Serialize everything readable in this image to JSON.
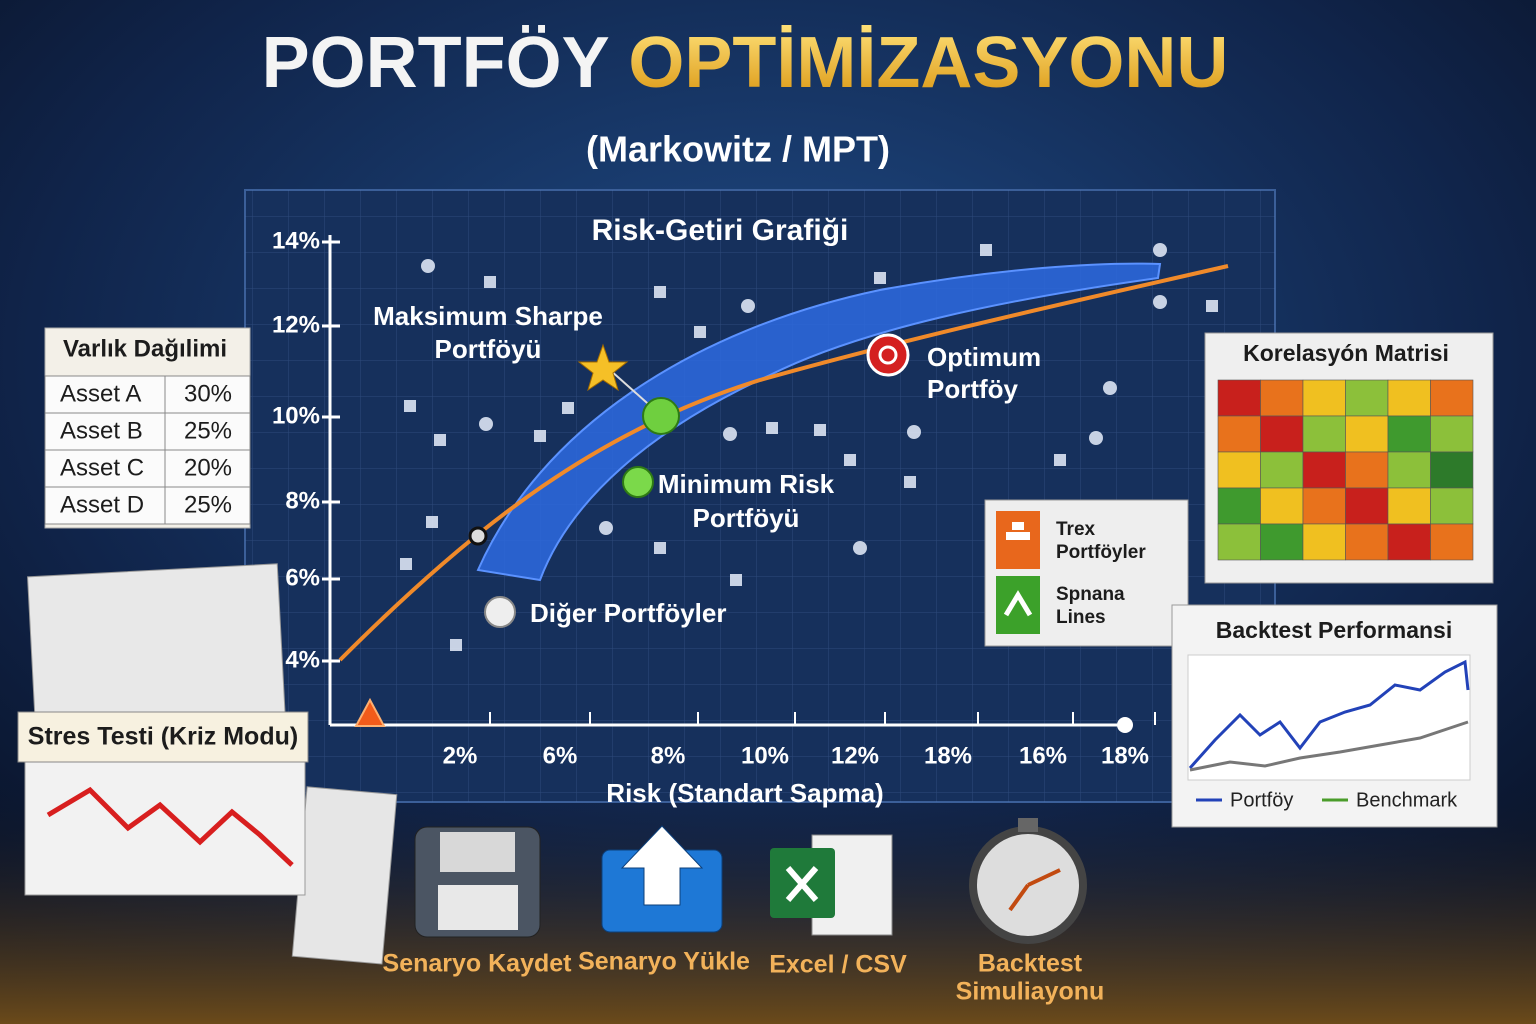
{
  "header": {
    "title_white": "PORTFÖY",
    "title_gold": "OPTİMİZASYONU",
    "subtitle": "(Markowitz / MPT)"
  },
  "chart": {
    "title": "Risk-Getiri Grafiği",
    "y_ticks": [
      "14%",
      "12%",
      "10%",
      "8%",
      "6%",
      "4%"
    ],
    "x_ticks": [
      "2%",
      "6%",
      "8%",
      "10%",
      "12%",
      "18%",
      "16%",
      "18%"
    ],
    "x_label": "Risk (Standart Sapma)",
    "max_sharpe": [
      "Maksimum Sharpe",
      "Portföyü"
    ],
    "optimum": [
      "Optimum",
      "Portföy"
    ],
    "min_risk": [
      "Minimum Risk",
      "Portföyü"
    ],
    "others": "Diğer Portföyler"
  },
  "legend": {
    "items": [
      [
        "Trex",
        "Portföyler"
      ],
      [
        "Spnana",
        "Lines"
      ]
    ]
  },
  "allocation": {
    "title": "Varlık Dağılimi",
    "rows": [
      [
        "Asset A",
        "30%"
      ],
      [
        "Asset B",
        "25%"
      ],
      [
        "Asset C",
        "20%"
      ],
      [
        "Asset D",
        "25%"
      ]
    ]
  },
  "stress": {
    "title": "Stres Testi (Kriz Modu)"
  },
  "correlation": {
    "title": "Korelasyón Matrisi"
  },
  "backtest": {
    "title": "Backtest Performansi",
    "legend": [
      "Portföy",
      "Benchmark"
    ]
  },
  "buttons": [
    [
      "Senaryo Kaydet"
    ],
    [
      "Senaryo Yükle"
    ],
    [
      "Excel / CSV"
    ],
    [
      "Backtest",
      "Simuliayonu"
    ]
  ]
}
